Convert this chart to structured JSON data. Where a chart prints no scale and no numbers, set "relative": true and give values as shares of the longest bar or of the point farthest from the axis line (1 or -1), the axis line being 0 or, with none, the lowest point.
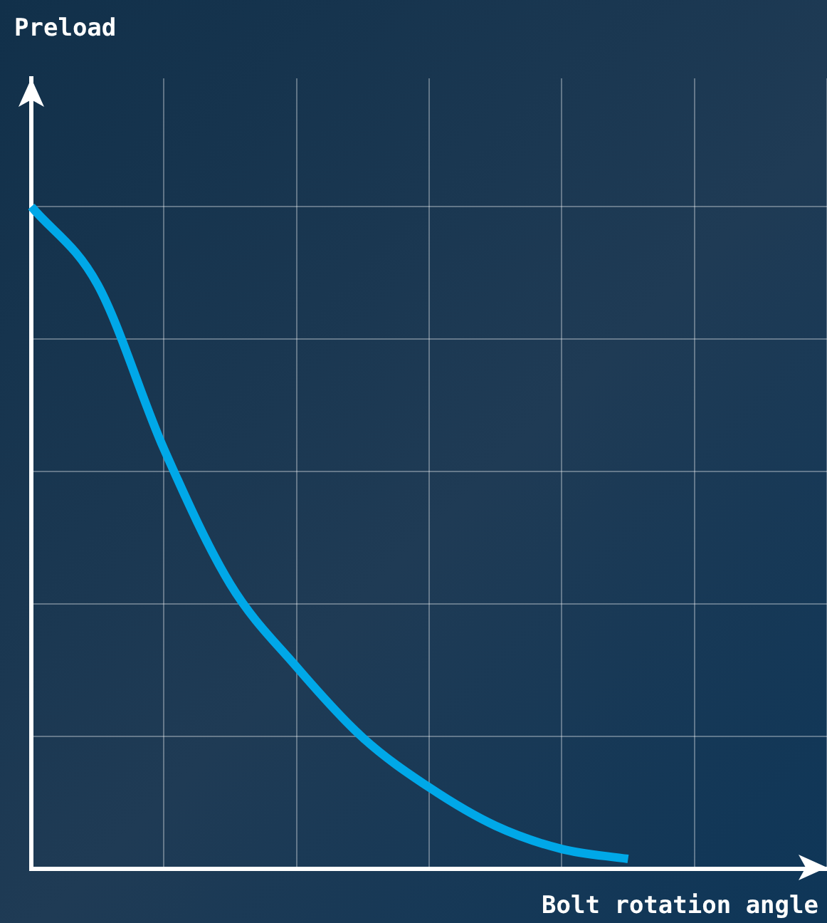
{
  "chart_data": {
    "type": "line",
    "relative": true,
    "annotations": [
      "Preload"
    ],
    "xlabel": "Bolt rotation angle",
    "grid": true,
    "categories": [
      null,
      null,
      null,
      null,
      null,
      null,
      null,
      null,
      null,
      null,
      null,
      null,
      null
    ],
    "series": [
      {
        "color": "#00a8e8",
        "values": [
          1,
          0.882,
          0.634,
          0.43,
          0.305,
          0.198,
          0.123,
          0.065,
          0.03,
          0.015,
          null,
          null,
          null
        ]
      }
    ]
  }
}
